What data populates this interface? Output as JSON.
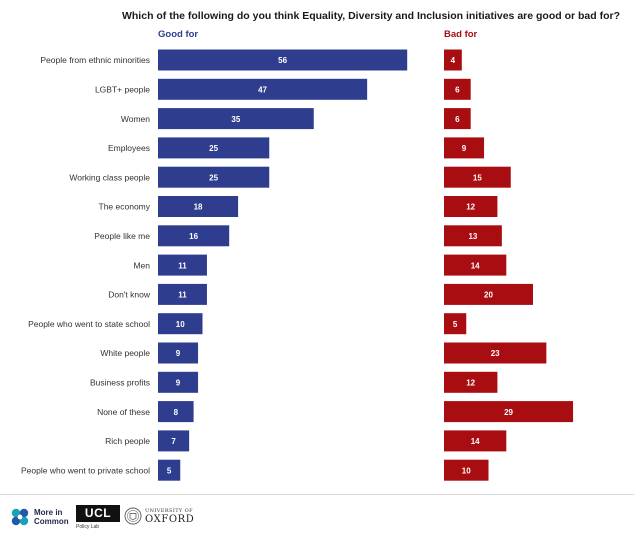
{
  "chart_data": {
    "type": "bar",
    "title": "Which of the following do you think Equality, Diversity and Inclusion initiatives are good or bad for?",
    "categories": [
      "People from ethnic minorities",
      "LGBT+ people",
      "Women",
      "Employees",
      "Working class people",
      "The economy",
      "People like me",
      "Men",
      "Don't know",
      "People who went to state school",
      "White people",
      "Business profits",
      "None of these",
      "Rich people",
      "People who went to private school"
    ],
    "series": [
      {
        "name": "Good for",
        "color": "#2f3d8e",
        "values": [
          56,
          47,
          35,
          25,
          25,
          18,
          16,
          11,
          11,
          10,
          9,
          9,
          8,
          7,
          5
        ]
      },
      {
        "name": "Bad for",
        "color": "#a70d11",
        "values": [
          4,
          6,
          6,
          9,
          15,
          12,
          13,
          14,
          20,
          5,
          23,
          12,
          29,
          14,
          10
        ]
      }
    ],
    "grid": false,
    "legend_placement": "top"
  },
  "footer": {
    "more_in_common": "More in Common",
    "ucl": "UCL",
    "ucl_sub": "Policy Lab",
    "oxford_small": "UNIVERSITY OF",
    "oxford_big": "OXFORD"
  }
}
